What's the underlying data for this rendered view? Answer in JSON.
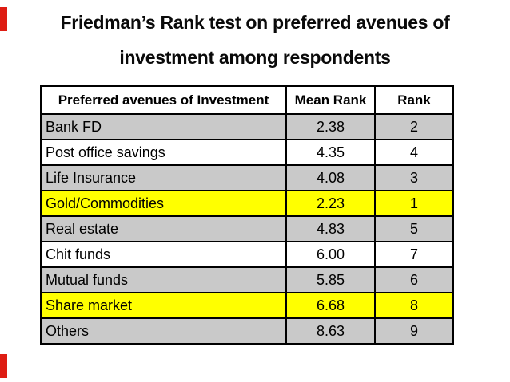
{
  "slide": {
    "background": "#ffffff",
    "accent_bars": {
      "color": "#de1d13",
      "positions": [
        "top-left",
        "bottom-left"
      ]
    }
  },
  "title": {
    "line1": "Friedman’s Rank test on preferred avenues of",
    "line2": "investment among respondents",
    "color": "#0a0a0a"
  },
  "table": {
    "columns": [
      "Preferred avenues of Investment",
      "Mean Rank",
      "Rank"
    ],
    "rows": [
      {
        "avenue": "Bank FD",
        "mean_rank": "2.38",
        "rank": "2",
        "highlight": "grey"
      },
      {
        "avenue": "Post office savings",
        "mean_rank": "4.35",
        "rank": "4",
        "highlight": "white"
      },
      {
        "avenue": "Life Insurance",
        "mean_rank": "4.08",
        "rank": "3",
        "highlight": "grey"
      },
      {
        "avenue": "Gold/Commodities",
        "mean_rank": "2.23",
        "rank": "1",
        "highlight": "yellow"
      },
      {
        "avenue": "Real estate",
        "mean_rank": "4.83",
        "rank": "5",
        "highlight": "grey"
      },
      {
        "avenue": "Chit funds",
        "mean_rank": "6.00",
        "rank": "7",
        "highlight": "white"
      },
      {
        "avenue": "Mutual funds",
        "mean_rank": "5.85",
        "rank": "6",
        "highlight": "grey"
      },
      {
        "avenue": "Share market",
        "mean_rank": "6.68",
        "rank": "8",
        "highlight": "yellow"
      },
      {
        "avenue": "Others",
        "mean_rank": "8.63",
        "rank": "9",
        "highlight": "grey"
      }
    ],
    "colors": {
      "grey_row": "#c9c9c9",
      "yellow_highlight": "#ffff00",
      "white_row": "#ffffff",
      "border": "#000000",
      "header_background": "#ffffff"
    }
  }
}
